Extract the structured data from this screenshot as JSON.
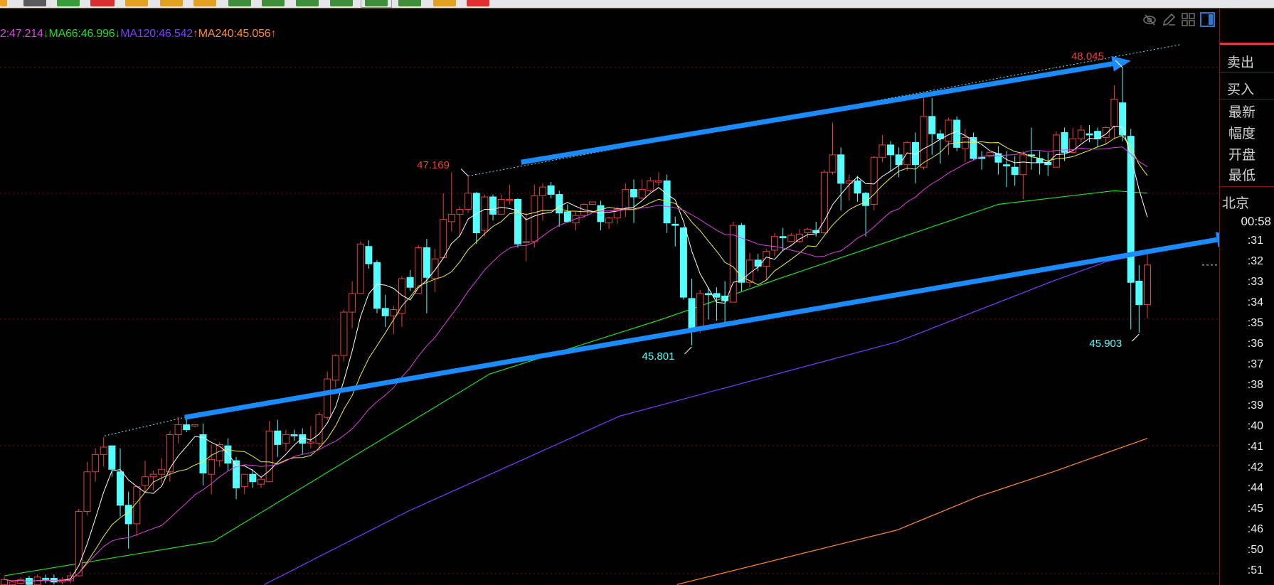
{
  "toolbar": {
    "icons": [
      {
        "name": "orange-round-icon",
        "color": "#f0a020"
      },
      {
        "name": "window-layout-icon",
        "color": "#5a5a5a"
      },
      {
        "name": "bar-chart-icon",
        "color": "#3a9a3a"
      },
      {
        "name": "red-tool-icon",
        "color": "#d83030"
      },
      {
        "name": "yellow-tool-icon-1",
        "color": "#e0a020"
      },
      {
        "name": "yellow-tool-icon-2",
        "color": "#e0a020"
      },
      {
        "name": "yellow-tool-icon-3",
        "color": "#e0a020"
      },
      {
        "name": "green-tool-icon-1",
        "color": "#3e8e3e"
      },
      {
        "name": "green-tool-icon-2",
        "color": "#3e8e3e"
      },
      {
        "name": "green-tool-icon-3",
        "color": "#3e8e3e"
      },
      {
        "name": "green-tool-icon-4",
        "color": "#3e8e3e"
      },
      {
        "name": "green-tool-icon-5",
        "color": "#3e8e3e"
      },
      {
        "name": "green-tool-icon-6",
        "color": "#3e8e3e"
      },
      {
        "name": "yellow-tool-icon-4",
        "color": "#e0a020"
      },
      {
        "name": "red-close-icon",
        "color": "#e03030"
      }
    ]
  },
  "legend": [
    {
      "text": "2:47.214",
      "color": "#e040e0",
      "arrow": "↓",
      "dir": "down"
    },
    {
      "text": "MA66:46.996",
      "color": "#22dd22",
      "arrow": "↓",
      "dir": "down"
    },
    {
      "text": "MA120:46.542",
      "color": "#7a3cff",
      "arrow": "↑",
      "dir": "up"
    },
    {
      "text": "MA240:45.056",
      "color": "#ff8a2a",
      "arrow": "↑",
      "dir": "up"
    }
  ],
  "chart_tools": [
    "eye-hide-icon",
    "pencil-icon",
    "grid-layout-icon",
    "panel-toggle-icon"
  ],
  "panel": {
    "sell": "卖出",
    "buy": "买入",
    "fields": [
      "最新",
      "幅度",
      "开盘",
      "最低"
    ],
    "region": "北京",
    "clock": "00:58",
    "ticks": [
      ":31",
      ":32",
      ":33",
      ":34",
      ":35",
      ":36",
      ":37",
      ":38",
      ":39",
      ":40",
      ":41",
      ":42",
      ":44",
      ":45",
      ":46",
      ":50",
      ":51"
    ]
  },
  "colors": {
    "up": "#e8413a",
    "down": "#54ffff",
    "trendline": "#1a8cff",
    "grid": "#7a1010"
  },
  "chart_data": {
    "type": "candlestick",
    "ylim": [
      43.87,
      48.52
    ],
    "grid": true,
    "candles_ohlc": [
      [
        43.87,
        43.93,
        43.87,
        43.91
      ],
      [
        43.87,
        43.9,
        43.87,
        43.89
      ],
      [
        43.88,
        43.93,
        43.87,
        43.91
      ],
      [
        43.92,
        43.94,
        43.87,
        43.87
      ],
      [
        43.87,
        43.95,
        43.87,
        43.93
      ],
      [
        43.92,
        43.95,
        43.88,
        43.91
      ],
      [
        43.92,
        43.95,
        43.87,
        43.89
      ],
      [
        43.89,
        43.93,
        43.87,
        43.91
      ],
      [
        43.9,
        43.97,
        43.88,
        43.94
      ],
      [
        43.94,
        44.48,
        43.93,
        44.46
      ],
      [
        44.46,
        44.86,
        44.43,
        44.78
      ],
      [
        44.78,
        44.97,
        44.7,
        44.92
      ],
      [
        44.92,
        45.06,
        44.82,
        44.98
      ],
      [
        44.99,
        44.99,
        44.74,
        44.8
      ],
      [
        44.78,
        44.97,
        44.42,
        44.51
      ],
      [
        44.51,
        44.62,
        44.16,
        44.36
      ],
      [
        44.36,
        44.66,
        44.26,
        44.66
      ],
      [
        44.67,
        44.87,
        44.62,
        44.74
      ],
      [
        44.74,
        44.79,
        44.63,
        44.76
      ],
      [
        44.76,
        44.89,
        44.69,
        44.8
      ],
      [
        44.78,
        45.11,
        44.7,
        45.08
      ],
      [
        45.08,
        45.22,
        45.01,
        45.16
      ],
      [
        45.16,
        45.22,
        45.1,
        45.12
      ],
      [
        45.15,
        45.16,
        45.14,
        45.16
      ],
      [
        45.08,
        45.17,
        44.67,
        44.77
      ],
      [
        44.76,
        45.0,
        44.6,
        44.88
      ],
      [
        44.87,
        45.02,
        44.82,
        45.0
      ],
      [
        44.99,
        45.05,
        44.79,
        44.85
      ],
      [
        44.87,
        44.9,
        44.56,
        44.65
      ],
      [
        44.66,
        44.76,
        44.6,
        44.76
      ],
      [
        44.76,
        44.8,
        44.65,
        44.7
      ],
      [
        44.68,
        44.74,
        44.65,
        44.72
      ],
      [
        44.7,
        45.19,
        44.7,
        45.11
      ],
      [
        45.11,
        45.2,
        44.9,
        45.0
      ],
      [
        45.01,
        45.12,
        44.95,
        45.08
      ],
      [
        45.08,
        45.12,
        45.03,
        45.07
      ],
      [
        45.08,
        45.13,
        44.92,
        45.01
      ],
      [
        45.01,
        45.15,
        44.97,
        45.02
      ],
      [
        45.01,
        45.26,
        44.97,
        45.24
      ],
      [
        45.22,
        45.59,
        45.2,
        45.53
      ],
      [
        45.52,
        45.73,
        45.46,
        45.72
      ],
      [
        45.72,
        46.09,
        45.67,
        46.07
      ],
      [
        46.07,
        46.32,
        45.94,
        46.22
      ],
      [
        46.22,
        46.64,
        46.22,
        46.62
      ],
      [
        46.6,
        46.65,
        46.42,
        46.46
      ],
      [
        46.47,
        46.49,
        46.06,
        46.1
      ],
      [
        46.1,
        46.21,
        45.95,
        46.04
      ],
      [
        46.04,
        46.12,
        45.89,
        46.09
      ],
      [
        46.06,
        46.36,
        45.95,
        46.34
      ],
      [
        46.35,
        46.41,
        46.24,
        46.27
      ],
      [
        46.22,
        46.61,
        46.22,
        46.59
      ],
      [
        46.59,
        46.66,
        46.06,
        46.35
      ],
      [
        46.34,
        46.58,
        46.23,
        46.5
      ],
      [
        46.51,
        47.03,
        46.51,
        46.82
      ],
      [
        46.8,
        47.2,
        46.72,
        46.86
      ],
      [
        46.86,
        46.92,
        46.68,
        46.9
      ],
      [
        46.9,
        47.169,
        46.87,
        47.03
      ],
      [
        47.03,
        47.04,
        46.62,
        46.71
      ],
      [
        46.73,
        47.02,
        46.68,
        47.0
      ],
      [
        47.0,
        47.02,
        46.81,
        46.86
      ],
      [
        46.86,
        47.02,
        46.86,
        46.98
      ],
      [
        46.97,
        47.1,
        46.94,
        46.98
      ],
      [
        46.98,
        46.99,
        46.59,
        46.62
      ],
      [
        46.63,
        46.87,
        46.48,
        46.64
      ],
      [
        46.64,
        47.1,
        46.59,
        47.01
      ],
      [
        47.01,
        47.11,
        46.81,
        47.08
      ],
      [
        47.09,
        47.12,
        46.99,
        47.02
      ],
      [
        47.02,
        47.05,
        46.76,
        46.87
      ],
      [
        46.88,
        46.94,
        46.8,
        46.8
      ],
      [
        46.79,
        46.88,
        46.73,
        46.85
      ],
      [
        46.85,
        46.95,
        46.83,
        46.94
      ],
      [
        46.94,
        46.96,
        46.94,
        46.96
      ],
      [
        46.93,
        46.97,
        46.73,
        46.8
      ],
      [
        46.79,
        46.84,
        46.74,
        46.83
      ],
      [
        46.83,
        46.92,
        46.78,
        46.9
      ],
      [
        46.9,
        47.11,
        46.84,
        47.06
      ],
      [
        47.06,
        47.14,
        46.79,
        47.0
      ],
      [
        46.99,
        47.14,
        46.98,
        47.06
      ],
      [
        47.05,
        47.16,
        47.04,
        47.13
      ],
      [
        47.12,
        47.2,
        47.09,
        47.13
      ],
      [
        47.13,
        47.18,
        46.71,
        46.79
      ],
      [
        46.78,
        46.84,
        46.6,
        46.77
      ],
      [
        46.75,
        46.76,
        46.17,
        46.19
      ],
      [
        46.18,
        46.34,
        45.801,
        45.93
      ],
      [
        45.94,
        46.25,
        45.9,
        46.22
      ],
      [
        46.22,
        46.27,
        46.01,
        46.21
      ],
      [
        46.22,
        46.27,
        46.0,
        46.19
      ],
      [
        46.2,
        46.32,
        45.98,
        46.16
      ],
      [
        46.15,
        46.8,
        46.15,
        46.77
      ],
      [
        46.77,
        46.79,
        46.24,
        46.31
      ],
      [
        46.31,
        46.55,
        46.27,
        46.49
      ],
      [
        46.49,
        46.54,
        46.4,
        46.44
      ],
      [
        46.44,
        46.58,
        46.33,
        46.56
      ],
      [
        46.57,
        46.71,
        46.52,
        46.68
      ],
      [
        46.68,
        46.75,
        46.57,
        46.67
      ],
      [
        46.64,
        46.71,
        46.64,
        46.69
      ],
      [
        46.64,
        46.74,
        46.63,
        46.7
      ],
      [
        46.71,
        46.75,
        46.67,
        46.74
      ],
      [
        46.73,
        46.8,
        46.68,
        46.71
      ],
      [
        46.71,
        47.22,
        46.7,
        47.2
      ],
      [
        47.2,
        47.6,
        47.18,
        47.34
      ],
      [
        47.34,
        47.4,
        46.89,
        47.11
      ],
      [
        47.11,
        47.18,
        46.97,
        47.13
      ],
      [
        47.13,
        47.17,
        46.96,
        47.03
      ],
      [
        47.03,
        47.04,
        46.68,
        46.93
      ],
      [
        46.94,
        47.33,
        46.89,
        47.32
      ],
      [
        47.32,
        47.5,
        47.28,
        47.42
      ],
      [
        47.42,
        47.45,
        47.21,
        47.34
      ],
      [
        47.34,
        47.4,
        47.16,
        47.26
      ],
      [
        47.26,
        47.45,
        47.21,
        47.44
      ],
      [
        47.44,
        47.52,
        47.11,
        47.26
      ],
      [
        47.24,
        47.8,
        47.22,
        47.65
      ],
      [
        47.65,
        47.8,
        47.34,
        47.51
      ],
      [
        47.51,
        47.54,
        47.27,
        47.47
      ],
      [
        47.45,
        47.64,
        47.34,
        47.62
      ],
      [
        47.62,
        47.65,
        47.37,
        47.4
      ],
      [
        47.39,
        47.55,
        47.28,
        47.48
      ],
      [
        47.48,
        47.52,
        47.3,
        47.31
      ],
      [
        47.32,
        47.37,
        47.22,
        47.31
      ],
      [
        47.33,
        47.36,
        47.32,
        47.36
      ],
      [
        47.35,
        47.41,
        47.18,
        47.28
      ],
      [
        47.26,
        47.37,
        47.08,
        47.25
      ],
      [
        47.24,
        47.33,
        47.09,
        47.18
      ],
      [
        47.18,
        47.37,
        46.98,
        47.34
      ],
      [
        47.34,
        47.56,
        47.22,
        47.33
      ],
      [
        47.31,
        47.37,
        47.18,
        47.28
      ],
      [
        47.28,
        47.36,
        47.17,
        47.26
      ],
      [
        47.24,
        47.53,
        47.24,
        47.5
      ],
      [
        47.52,
        47.56,
        47.29,
        47.36
      ],
      [
        47.36,
        47.56,
        47.35,
        47.47
      ],
      [
        47.47,
        47.58,
        47.44,
        47.54
      ],
      [
        47.51,
        47.58,
        47.44,
        47.5
      ],
      [
        47.53,
        47.56,
        47.4,
        47.47
      ],
      [
        47.48,
        47.57,
        47.43,
        47.56
      ],
      [
        47.57,
        47.9,
        47.47,
        47.79
      ],
      [
        47.76,
        48.045,
        47.45,
        47.5
      ],
      [
        47.49,
        47.55,
        45.93,
        46.31
      ],
      [
        46.32,
        46.45,
        45.903,
        46.13
      ],
      [
        46.13,
        46.54,
        46.02,
        46.45
      ]
    ],
    "computed_averages": [
      {
        "color": "#ffffff"
      },
      {
        "color": "#f0f040"
      },
      {
        "color": "#e040e0"
      }
    ],
    "long_averages": [
      {
        "name": "MA66",
        "color": "#22dd22",
        "points": [
          [
            0,
            43.94
          ],
          [
            25.3,
            44.22
          ],
          [
            58.6,
            45.57
          ],
          [
            79.3,
            46.01
          ],
          [
            93.1,
            46.33
          ],
          [
            120,
            46.94
          ],
          [
            134,
            47.05
          ],
          [
            138,
            47.03
          ]
        ]
      },
      {
        "name": "MA120",
        "color": "#7a3cff",
        "points": [
          [
            31.4,
            43.87
          ],
          [
            48.7,
            44.46
          ],
          [
            74.3,
            45.23
          ],
          [
            107.8,
            45.83
          ],
          [
            126.6,
            46.32
          ],
          [
            133.2,
            46.48
          ],
          [
            138,
            46.54
          ]
        ]
      },
      {
        "name": "MA240",
        "color": "#ff8a2a",
        "points": [
          [
            81.2,
            43.87
          ],
          [
            107.8,
            44.31
          ],
          [
            117.6,
            44.58
          ],
          [
            126.6,
            44.78
          ],
          [
            138,
            45.05
          ]
        ]
      }
    ],
    "trendlines": [
      {
        "style": "dotted",
        "color": "#7fe8ff",
        "from": [
          12.1,
          45.07
        ],
        "to": [
          21.8,
          45.22
        ]
      },
      {
        "style": "thick-arrow",
        "color": "#1a8cff",
        "from": [
          21.8,
          45.22
        ],
        "to": [
          148.6,
          46.68
        ]
      },
      {
        "style": "dotted",
        "color": "#7fe8ff",
        "from": [
          56,
          47.169
        ],
        "to": [
          142,
          48.23
        ]
      },
      {
        "style": "thick-arrow",
        "color": "#1a8cff",
        "from": [
          62.4,
          47.28
        ],
        "to": [
          136,
          48.1
        ]
      }
    ],
    "annotations": [
      {
        "label": "47.169",
        "index": 56,
        "price": 47.169,
        "color": "#e8413a",
        "kind": "high"
      },
      {
        "label": "48.045",
        "index": 135,
        "price": 48.045,
        "color": "#e8413a",
        "kind": "high"
      },
      {
        "label": "45.801",
        "index": 83,
        "price": 45.801,
        "color": "#54ffff",
        "kind": "low"
      },
      {
        "label": "45.903",
        "index": 137,
        "price": 45.903,
        "color": "#54ffff",
        "kind": "low"
      }
    ],
    "last_price": 46.45
  }
}
